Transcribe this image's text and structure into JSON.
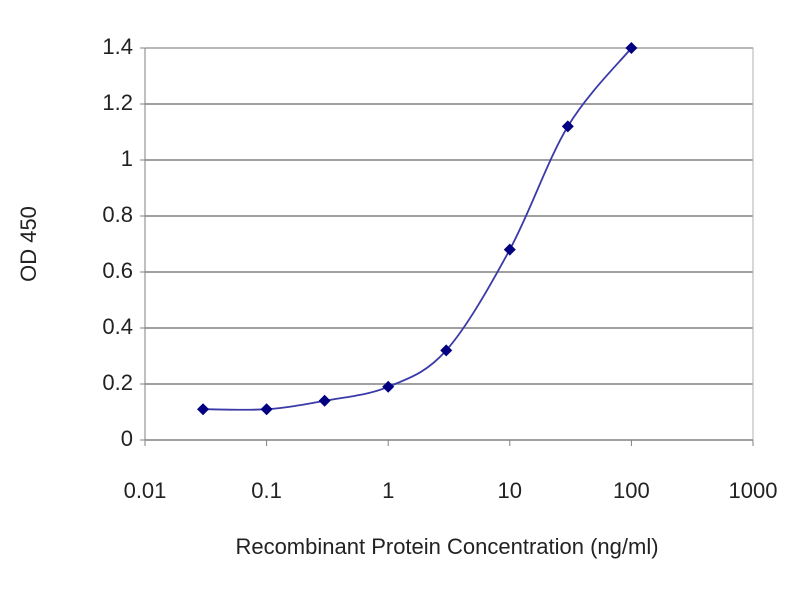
{
  "chart_data": {
    "type": "line",
    "x_label": "Recombinant Protein Concentration (ng/ml)",
    "y_label": "OD 450",
    "x_scale": "log",
    "x": [
      0.03,
      0.1,
      0.3,
      1,
      3,
      10,
      30,
      100
    ],
    "series": [
      {
        "color": "#000080",
        "line_color": "#3a3aa8",
        "marker": "diamond",
        "values": [
          0.11,
          0.11,
          0.14,
          0.19,
          0.32,
          0.68,
          1.12,
          1.4
        ]
      }
    ],
    "xlim": [
      0.01,
      1000
    ],
    "xticks": [
      0.01,
      0.1,
      1,
      10,
      100,
      1000
    ],
    "ylim": [
      0,
      1.4
    ],
    "yticks": [
      0,
      0.2,
      0.4,
      0.6,
      0.8,
      1,
      1.2,
      1.4
    ],
    "grid": true
  }
}
